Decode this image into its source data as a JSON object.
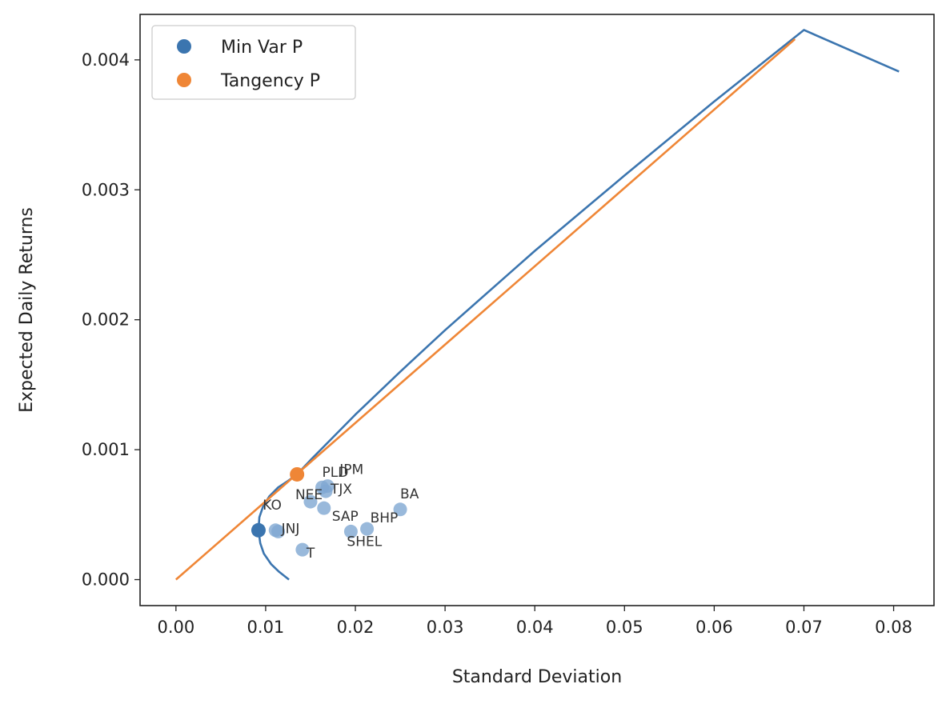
{
  "chart_data": {
    "type": "scatter",
    "title": "",
    "xlabel": "Standard Deviation",
    "ylabel": "Expected Daily Returns",
    "xlim": [
      -0.004,
      0.0845
    ],
    "ylim": [
      -0.0002,
      0.00435
    ],
    "x_ticks": [
      0.0,
      0.01,
      0.02,
      0.03,
      0.04,
      0.05,
      0.06,
      0.07,
      0.08
    ],
    "x_tick_labels": [
      "0.00",
      "0.01",
      "0.02",
      "0.03",
      "0.04",
      "0.05",
      "0.06",
      "0.07",
      "0.08"
    ],
    "y_ticks": [
      0.0,
      0.001,
      0.002,
      0.003,
      0.004
    ],
    "y_tick_labels": [
      "0.000",
      "0.001",
      "0.002",
      "0.003",
      "0.004"
    ],
    "grid": false,
    "legend_position": "top-left",
    "colors": {
      "blue": "#3b75af",
      "orange": "#ef8636",
      "asset": "#7fa7d2"
    },
    "legend": [
      {
        "label": "Min Var P",
        "color": "#3b75af"
      },
      {
        "label": "Tangency P",
        "color": "#ef8636"
      }
    ],
    "assets": [
      {
        "name": "PLD",
        "x": 0.0163,
        "y": 0.00071
      },
      {
        "name": "JPM",
        "x": 0.0169,
        "y": 0.00072
      },
      {
        "name": "TJX",
        "x": 0.0167,
        "y": 0.00068
      },
      {
        "name": "NEE",
        "x": 0.015,
        "y": 0.0006
      },
      {
        "name": "SAP",
        "x": 0.0165,
        "y": 0.00055
      },
      {
        "name": "BA",
        "x": 0.025,
        "y": 0.00054
      },
      {
        "name": "BHP",
        "x": 0.0213,
        "y": 0.00039
      },
      {
        "name": "SHEL",
        "x": 0.0195,
        "y": 0.00037
      },
      {
        "name": "KO",
        "x": 0.0111,
        "y": 0.00038
      },
      {
        "name": "JNJ",
        "x": 0.0114,
        "y": 0.00037
      },
      {
        "name": "T",
        "x": 0.0141,
        "y": 0.00023
      }
    ],
    "min_var_portfolio": {
      "x": 0.0092,
      "y": 0.00038
    },
    "tangency_portfolio": {
      "x": 0.0135,
      "y": 0.00081
    },
    "efficient_frontier": {
      "x": [
        0.0126,
        0.0115,
        0.0106,
        0.0098,
        0.0094,
        0.0092,
        0.0093,
        0.0097,
        0.0104,
        0.0114,
        0.0125,
        0.0135,
        0.015,
        0.017,
        0.02,
        0.025,
        0.03,
        0.04,
        0.05,
        0.06,
        0.07,
        0.0806
      ],
      "y": [
        0.0,
        6e-05,
        0.00012,
        0.0002,
        0.00028,
        0.00038,
        0.00048,
        0.00056,
        0.00064,
        0.00071,
        0.00076,
        0.00081,
        0.00092,
        0.00106,
        0.00127,
        0.0016,
        0.00192,
        0.00253,
        0.00311,
        0.00368,
        0.00423,
        0.00391
      ]
    },
    "capital_market_line": {
      "x": [
        0.0,
        0.069
      ],
      "y": [
        0.0,
        0.00416
      ]
    }
  }
}
